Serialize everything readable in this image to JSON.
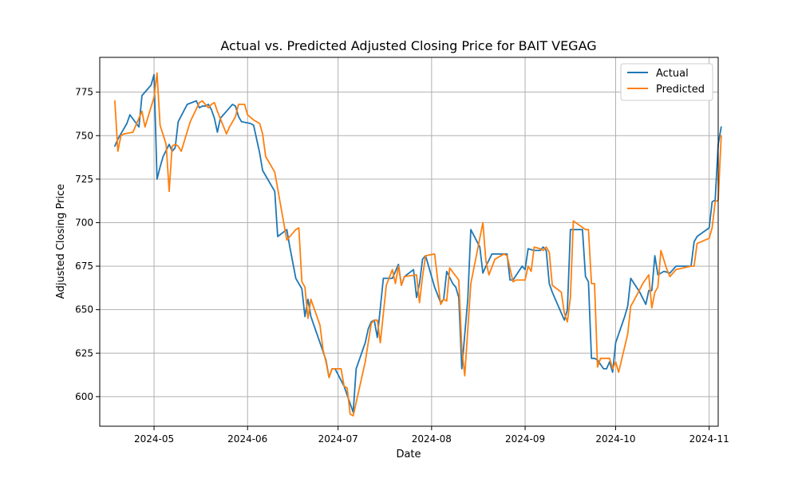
{
  "chart_data": {
    "type": "line",
    "title": "Actual vs. Predicted Adjusted Closing Price for BAIT VEGAG",
    "xlabel": "Date",
    "ylabel": "Adjusted Closing Price",
    "xlim": [
      "2024-04-13",
      "2024-11-04"
    ],
    "ylim": [
      583,
      795
    ],
    "x_ticks": [
      {
        "date": "2024-05-01",
        "label": "2024-05"
      },
      {
        "date": "2024-06-01",
        "label": "2024-06"
      },
      {
        "date": "2024-07-01",
        "label": "2024-07"
      },
      {
        "date": "2024-08-01",
        "label": "2024-08"
      },
      {
        "date": "2024-09-01",
        "label": "2024-09"
      },
      {
        "date": "2024-10-01",
        "label": "2024-10"
      },
      {
        "date": "2024-11-01",
        "label": "2024-11"
      }
    ],
    "y_ticks": [
      {
        "value": 600,
        "label": "600"
      },
      {
        "value": 625,
        "label": "625"
      },
      {
        "value": 650,
        "label": "650"
      },
      {
        "value": 675,
        "label": "675"
      },
      {
        "value": 700,
        "label": "700"
      },
      {
        "value": 725,
        "label": "725"
      },
      {
        "value": 750,
        "label": "750"
      },
      {
        "value": 775,
        "label": "775"
      }
    ],
    "grid": true,
    "legend": {
      "position": "top-right"
    },
    "series": [
      {
        "name": "Actual",
        "color": "#1f77b4",
        "points": [
          [
            "2024-04-18",
            744
          ],
          [
            "2024-04-19",
            748
          ],
          [
            "2024-04-22",
            757
          ],
          [
            "2024-04-23",
            762
          ],
          [
            "2024-04-26",
            755
          ],
          [
            "2024-04-27",
            773
          ],
          [
            "2024-04-30",
            779
          ],
          [
            "2024-05-01",
            785
          ],
          [
            "2024-05-02",
            725
          ],
          [
            "2024-05-03",
            732
          ],
          [
            "2024-05-04",
            738
          ],
          [
            "2024-05-06",
            745
          ],
          [
            "2024-05-07",
            741
          ],
          [
            "2024-05-08",
            743
          ],
          [
            "2024-05-09",
            758
          ],
          [
            "2024-05-12",
            768
          ],
          [
            "2024-05-15",
            770
          ],
          [
            "2024-05-16",
            766
          ],
          [
            "2024-05-17",
            767
          ],
          [
            "2024-05-18",
            767
          ],
          [
            "2024-05-19",
            768
          ],
          [
            "2024-05-20",
            765
          ],
          [
            "2024-05-21",
            760
          ],
          [
            "2024-05-22",
            752
          ],
          [
            "2024-05-23",
            760
          ],
          [
            "2024-05-25",
            764
          ],
          [
            "2024-05-27",
            768
          ],
          [
            "2024-05-28",
            767
          ],
          [
            "2024-05-29",
            761
          ],
          [
            "2024-05-30",
            758
          ],
          [
            "2024-06-02",
            757
          ],
          [
            "2024-06-03",
            756
          ],
          [
            "2024-06-05",
            740
          ],
          [
            "2024-06-06",
            730
          ],
          [
            "2024-06-10",
            718
          ],
          [
            "2024-06-11",
            692
          ],
          [
            "2024-06-14",
            696
          ],
          [
            "2024-06-15",
            686
          ],
          [
            "2024-06-17",
            668
          ],
          [
            "2024-06-19",
            662
          ],
          [
            "2024-06-20",
            646
          ],
          [
            "2024-06-21",
            656
          ],
          [
            "2024-06-22",
            646
          ],
          [
            "2024-06-25",
            631
          ],
          [
            "2024-06-27",
            621
          ],
          [
            "2024-06-28",
            611
          ],
          [
            "2024-06-29",
            616
          ],
          [
            "2024-06-30",
            616
          ],
          [
            "2024-07-03",
            606
          ],
          [
            "2024-07-05",
            596
          ],
          [
            "2024-07-06",
            591
          ],
          [
            "2024-07-07",
            616
          ],
          [
            "2024-07-10",
            631
          ],
          [
            "2024-07-11",
            639
          ],
          [
            "2024-07-12",
            643
          ],
          [
            "2024-07-13",
            644
          ],
          [
            "2024-07-14",
            634
          ],
          [
            "2024-07-16",
            668
          ],
          [
            "2024-07-19",
            668
          ],
          [
            "2024-07-20",
            672
          ],
          [
            "2024-07-21",
            676
          ],
          [
            "2024-07-22",
            664
          ],
          [
            "2024-07-23",
            669
          ],
          [
            "2024-07-26",
            673
          ],
          [
            "2024-07-27",
            657
          ],
          [
            "2024-07-28",
            665
          ],
          [
            "2024-07-29",
            679
          ],
          [
            "2024-07-30",
            681
          ],
          [
            "2024-08-02",
            663
          ],
          [
            "2024-08-04",
            654
          ],
          [
            "2024-08-05",
            656
          ],
          [
            "2024-08-06",
            672
          ],
          [
            "2024-08-08",
            665
          ],
          [
            "2024-08-09",
            663
          ],
          [
            "2024-08-10",
            657
          ],
          [
            "2024-08-11",
            616
          ],
          [
            "2024-08-13",
            656
          ],
          [
            "2024-08-14",
            696
          ],
          [
            "2024-08-17",
            686
          ],
          [
            "2024-08-18",
            671
          ],
          [
            "2024-08-19",
            675
          ],
          [
            "2024-08-21",
            682
          ],
          [
            "2024-08-24",
            682
          ],
          [
            "2024-08-26",
            682
          ],
          [
            "2024-08-27",
            667
          ],
          [
            "2024-08-28",
            667
          ],
          [
            "2024-08-31",
            675
          ],
          [
            "2024-09-01",
            673
          ],
          [
            "2024-09-02",
            685
          ],
          [
            "2024-09-04",
            684
          ],
          [
            "2024-09-06",
            684
          ],
          [
            "2024-09-07",
            686
          ],
          [
            "2024-09-08",
            684
          ],
          [
            "2024-09-09",
            665
          ],
          [
            "2024-09-10",
            660
          ],
          [
            "2024-09-13",
            648
          ],
          [
            "2024-09-14",
            644
          ],
          [
            "2024-09-15",
            650
          ],
          [
            "2024-09-16",
            696
          ],
          [
            "2024-09-20",
            696
          ],
          [
            "2024-09-21",
            669
          ],
          [
            "2024-09-22",
            666
          ],
          [
            "2024-09-23",
            622
          ],
          [
            "2024-09-24",
            622
          ],
          [
            "2024-09-25",
            621
          ],
          [
            "2024-09-27",
            616
          ],
          [
            "2024-09-28",
            616
          ],
          [
            "2024-09-29",
            620
          ],
          [
            "2024-09-30",
            614
          ],
          [
            "2024-10-01",
            631
          ],
          [
            "2024-10-04",
            646
          ],
          [
            "2024-10-05",
            652
          ],
          [
            "2024-10-06",
            668
          ],
          [
            "2024-10-09",
            660
          ],
          [
            "2024-10-11",
            653
          ],
          [
            "2024-10-12",
            661
          ],
          [
            "2024-10-13",
            661
          ],
          [
            "2024-10-14",
            681
          ],
          [
            "2024-10-15",
            670
          ],
          [
            "2024-10-17",
            672
          ],
          [
            "2024-10-19",
            671
          ],
          [
            "2024-10-21",
            675
          ],
          [
            "2024-10-26",
            675
          ],
          [
            "2024-10-27",
            689
          ],
          [
            "2024-10-28",
            692
          ],
          [
            "2024-11-01",
            697
          ],
          [
            "2024-11-02",
            712
          ],
          [
            "2024-11-03",
            713
          ],
          [
            "2024-11-04",
            745
          ],
          [
            "2024-11-05",
            755
          ]
        ]
      },
      {
        "name": "Predicted",
        "color": "#ff7f0e",
        "points": [
          [
            "2024-04-18",
            770
          ],
          [
            "2024-04-19",
            741
          ],
          [
            "2024-04-20",
            750
          ],
          [
            "2024-04-21",
            751
          ],
          [
            "2024-04-24",
            752
          ],
          [
            "2024-04-26",
            760
          ],
          [
            "2024-04-27",
            764
          ],
          [
            "2024-04-28",
            755
          ],
          [
            "2024-05-01",
            772
          ],
          [
            "2024-05-02",
            786
          ],
          [
            "2024-05-03",
            756
          ],
          [
            "2024-05-05",
            745
          ],
          [
            "2024-05-06",
            718
          ],
          [
            "2024-05-07",
            744
          ],
          [
            "2024-05-08",
            745
          ],
          [
            "2024-05-09",
            744
          ],
          [
            "2024-05-10",
            741
          ],
          [
            "2024-05-13",
            758
          ],
          [
            "2024-05-16",
            769
          ],
          [
            "2024-05-17",
            770
          ],
          [
            "2024-05-18",
            768
          ],
          [
            "2024-05-19",
            766
          ],
          [
            "2024-05-20",
            768
          ],
          [
            "2024-05-21",
            769
          ],
          [
            "2024-05-22",
            764
          ],
          [
            "2024-05-25",
            751
          ],
          [
            "2024-05-26",
            755
          ],
          [
            "2024-05-28",
            761
          ],
          [
            "2024-05-29",
            768
          ],
          [
            "2024-05-31",
            768
          ],
          [
            "2024-06-01",
            762
          ],
          [
            "2024-06-03",
            759
          ],
          [
            "2024-06-05",
            757
          ],
          [
            "2024-06-06",
            751
          ],
          [
            "2024-06-07",
            738
          ],
          [
            "2024-06-10",
            729
          ],
          [
            "2024-06-14",
            690
          ],
          [
            "2024-06-17",
            696
          ],
          [
            "2024-06-18",
            697
          ],
          [
            "2024-06-19",
            666
          ],
          [
            "2024-06-20",
            663
          ],
          [
            "2024-06-21",
            645
          ],
          [
            "2024-06-22",
            656
          ],
          [
            "2024-06-25",
            641
          ],
          [
            "2024-06-26",
            627
          ],
          [
            "2024-06-27",
            620
          ],
          [
            "2024-06-28",
            611
          ],
          [
            "2024-06-29",
            616
          ],
          [
            "2024-07-02",
            616
          ],
          [
            "2024-07-03",
            606
          ],
          [
            "2024-07-04",
            605
          ],
          [
            "2024-07-05",
            590
          ],
          [
            "2024-07-06",
            589
          ],
          [
            "2024-07-10",
            620
          ],
          [
            "2024-07-12",
            642
          ],
          [
            "2024-07-13",
            644
          ],
          [
            "2024-07-14",
            644
          ],
          [
            "2024-07-15",
            631
          ],
          [
            "2024-07-17",
            664
          ],
          [
            "2024-07-19",
            673
          ],
          [
            "2024-07-20",
            665
          ],
          [
            "2024-07-21",
            675
          ],
          [
            "2024-07-22",
            664
          ],
          [
            "2024-07-23",
            669
          ],
          [
            "2024-07-27",
            670
          ],
          [
            "2024-07-28",
            654
          ],
          [
            "2024-07-29",
            669
          ],
          [
            "2024-07-30",
            681
          ],
          [
            "2024-08-02",
            682
          ],
          [
            "2024-08-04",
            653
          ],
          [
            "2024-08-05",
            656
          ],
          [
            "2024-08-06",
            655
          ],
          [
            "2024-08-07",
            674
          ],
          [
            "2024-08-10",
            667
          ],
          [
            "2024-08-11",
            628
          ],
          [
            "2024-08-12",
            612
          ],
          [
            "2024-08-14",
            665
          ],
          [
            "2024-08-18",
            700
          ],
          [
            "2024-08-19",
            678
          ],
          [
            "2024-08-20",
            670
          ],
          [
            "2024-08-22",
            679
          ],
          [
            "2024-08-25",
            682
          ],
          [
            "2024-08-26",
            681
          ],
          [
            "2024-08-28",
            666
          ],
          [
            "2024-08-29",
            667
          ],
          [
            "2024-09-01",
            667
          ],
          [
            "2024-09-02",
            675
          ],
          [
            "2024-09-03",
            672
          ],
          [
            "2024-09-04",
            686
          ],
          [
            "2024-09-06",
            685
          ],
          [
            "2024-09-07",
            684
          ],
          [
            "2024-09-08",
            686
          ],
          [
            "2024-09-09",
            683
          ],
          [
            "2024-09-10",
            664
          ],
          [
            "2024-09-13",
            660
          ],
          [
            "2024-09-14",
            648
          ],
          [
            "2024-09-15",
            643
          ],
          [
            "2024-09-16",
            657
          ],
          [
            "2024-09-17",
            701
          ],
          [
            "2024-09-21",
            696
          ],
          [
            "2024-09-22",
            696
          ],
          [
            "2024-09-23",
            665
          ],
          [
            "2024-09-24",
            665
          ],
          [
            "2024-09-25",
            617
          ],
          [
            "2024-09-26",
            622
          ],
          [
            "2024-09-29",
            622
          ],
          [
            "2024-09-30",
            616
          ],
          [
            "2024-10-01",
            620
          ],
          [
            "2024-10-02",
            614
          ],
          [
            "2024-10-05",
            636
          ],
          [
            "2024-10-06",
            652
          ],
          [
            "2024-10-07",
            655
          ],
          [
            "2024-10-10",
            665
          ],
          [
            "2024-10-12",
            670
          ],
          [
            "2024-10-13",
            651
          ],
          [
            "2024-10-14",
            660
          ],
          [
            "2024-10-15",
            663
          ],
          [
            "2024-10-16",
            684
          ],
          [
            "2024-10-18",
            673
          ],
          [
            "2024-10-19",
            669
          ],
          [
            "2024-10-21",
            673
          ],
          [
            "2024-10-26",
            675
          ],
          [
            "2024-10-27",
            675
          ],
          [
            "2024-10-28",
            688
          ],
          [
            "2024-11-01",
            691
          ],
          [
            "2024-11-02",
            697
          ],
          [
            "2024-11-03",
            712
          ],
          [
            "2024-11-04",
            713
          ],
          [
            "2024-11-05",
            750
          ]
        ]
      }
    ]
  }
}
